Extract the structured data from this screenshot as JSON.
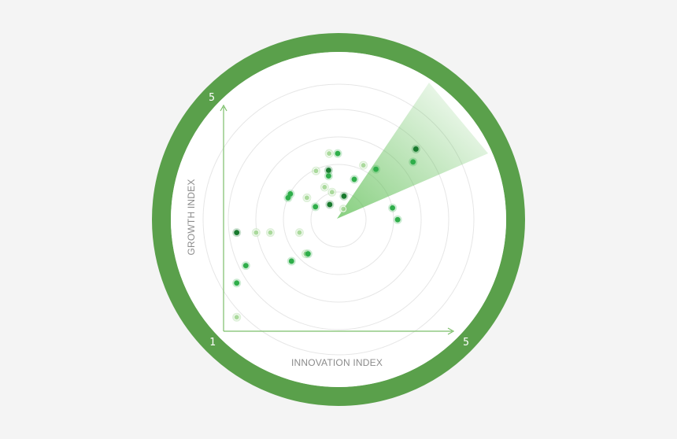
{
  "colors": {
    "background": "#f4f4f4",
    "ring": "#5aa04b",
    "radar_face": "#ffffff",
    "grid_circle": "#e6e6e6",
    "axis": "#7cbf6a",
    "dot_dark": "#187a2e",
    "dot_mid": "#2fae4a",
    "dot_light": "#9fd48e"
  },
  "chart_data": {
    "type": "scatter",
    "title": "",
    "xlabel": "INNOVATION INDEX",
    "ylabel": "GROWTH INDEX",
    "xlim": [
      1,
      5
    ],
    "ylim": [
      1,
      5
    ],
    "corner_labels": {
      "origin": "1",
      "x_max": "5",
      "y_max": "5"
    },
    "grid": "concentric circles",
    "points": [
      {
        "x": 4.37,
        "y": 4.25,
        "tone": "dark"
      },
      {
        "x": 4.32,
        "y": 4.02,
        "tone": "mid"
      },
      {
        "x": 3.67,
        "y": 3.89,
        "tone": "mid"
      },
      {
        "x": 3.45,
        "y": 3.96,
        "tone": "light"
      },
      {
        "x": 3.29,
        "y": 3.71,
        "tone": "mid"
      },
      {
        "x": 3.0,
        "y": 4.17,
        "tone": "mid"
      },
      {
        "x": 2.85,
        "y": 4.17,
        "tone": "light"
      },
      {
        "x": 2.84,
        "y": 3.87,
        "tone": "dark"
      },
      {
        "x": 2.84,
        "y": 3.77,
        "tone": "mid"
      },
      {
        "x": 2.62,
        "y": 3.86,
        "tone": "light"
      },
      {
        "x": 2.77,
        "y": 3.57,
        "tone": "light"
      },
      {
        "x": 2.9,
        "y": 3.48,
        "tone": "light"
      },
      {
        "x": 2.17,
        "y": 3.45,
        "tone": "mid"
      },
      {
        "x": 2.13,
        "y": 3.38,
        "tone": "mid"
      },
      {
        "x": 2.46,
        "y": 3.38,
        "tone": "light"
      },
      {
        "x": 3.11,
        "y": 3.41,
        "tone": "dark"
      },
      {
        "x": 2.86,
        "y": 3.26,
        "tone": "dark"
      },
      {
        "x": 3.1,
        "y": 3.18,
        "tone": "light"
      },
      {
        "x": 2.61,
        "y": 3.22,
        "tone": "mid"
      },
      {
        "x": 3.96,
        "y": 3.2,
        "tone": "mid"
      },
      {
        "x": 4.05,
        "y": 2.99,
        "tone": "mid"
      },
      {
        "x": 1.23,
        "y": 2.76,
        "tone": "dark"
      },
      {
        "x": 1.57,
        "y": 2.76,
        "tone": "light"
      },
      {
        "x": 1.82,
        "y": 2.76,
        "tone": "light"
      },
      {
        "x": 2.33,
        "y": 2.76,
        "tone": "light"
      },
      {
        "x": 2.44,
        "y": 2.38,
        "tone": "light"
      },
      {
        "x": 2.48,
        "y": 2.38,
        "tone": "mid"
      },
      {
        "x": 2.19,
        "y": 2.25,
        "tone": "mid"
      },
      {
        "x": 1.39,
        "y": 2.17,
        "tone": "mid"
      },
      {
        "x": 1.23,
        "y": 1.86,
        "tone": "mid"
      },
      {
        "x": 1.23,
        "y": 1.25,
        "tone": "light"
      }
    ]
  }
}
